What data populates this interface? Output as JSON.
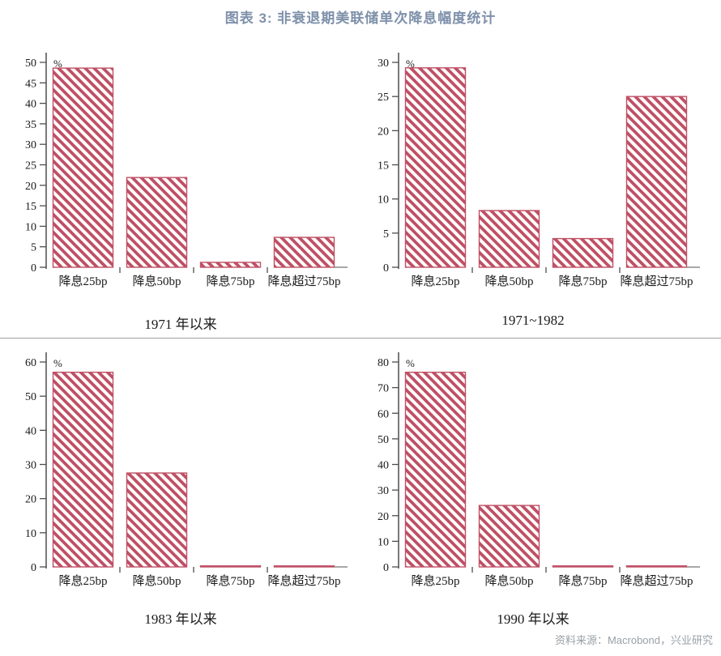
{
  "page": {
    "title": "图表 3: 非衰退期美联储单次降息幅度统计",
    "source_note": "资料来源：Macrobond，兴业研究"
  },
  "colors": {
    "title": "#7e90aa",
    "text": "#1a1a1a",
    "bar": "#bf5065",
    "bar_fill": "#fffcfc",
    "axis": "#4d4d4d",
    "baseline_tail": "#8c8c8c",
    "divider": "#a0a0a0",
    "source_text": "#9aa0a6"
  },
  "chart_data": [
    {
      "type": "bar",
      "subtitle": "1971 年以来",
      "ylabel": "%",
      "categories": [
        "降息25bp",
        "降息50bp",
        "降息75bp",
        "降息超过75bp"
      ],
      "values": [
        48.6,
        21.9,
        1.2,
        7.3
      ],
      "ylim": [
        0,
        50
      ],
      "ytick_step": 5,
      "grid": false,
      "legend": "none"
    },
    {
      "type": "bar",
      "subtitle": "1971~1982",
      "ylabel": "%",
      "categories": [
        "降息25bp",
        "降息50bp",
        "降息75bp",
        "降息超过75bp"
      ],
      "values": [
        29.2,
        8.3,
        4.2,
        25.0
      ],
      "ylim": [
        0,
        30
      ],
      "ytick_step": 5,
      "grid": false,
      "legend": "none"
    },
    {
      "type": "bar",
      "subtitle": "1983 年以来",
      "ylabel": "%",
      "categories": [
        "降息25bp",
        "降息50bp",
        "降息75bp",
        "降息超过75bp"
      ],
      "values": [
        57.0,
        27.5,
        0.3,
        0.3
      ],
      "ylim": [
        0,
        60
      ],
      "ytick_step": 10,
      "grid": false,
      "legend": "none"
    },
    {
      "type": "bar",
      "subtitle": "1990 年以来",
      "ylabel": "%",
      "categories": [
        "降息25bp",
        "降息50bp",
        "降息75bp",
        "降息超过75bp"
      ],
      "values": [
        76.0,
        24.0,
        0.4,
        0.4
      ],
      "ylim": [
        0,
        80
      ],
      "ytick_step": 10,
      "grid": false,
      "legend": "none"
    }
  ]
}
